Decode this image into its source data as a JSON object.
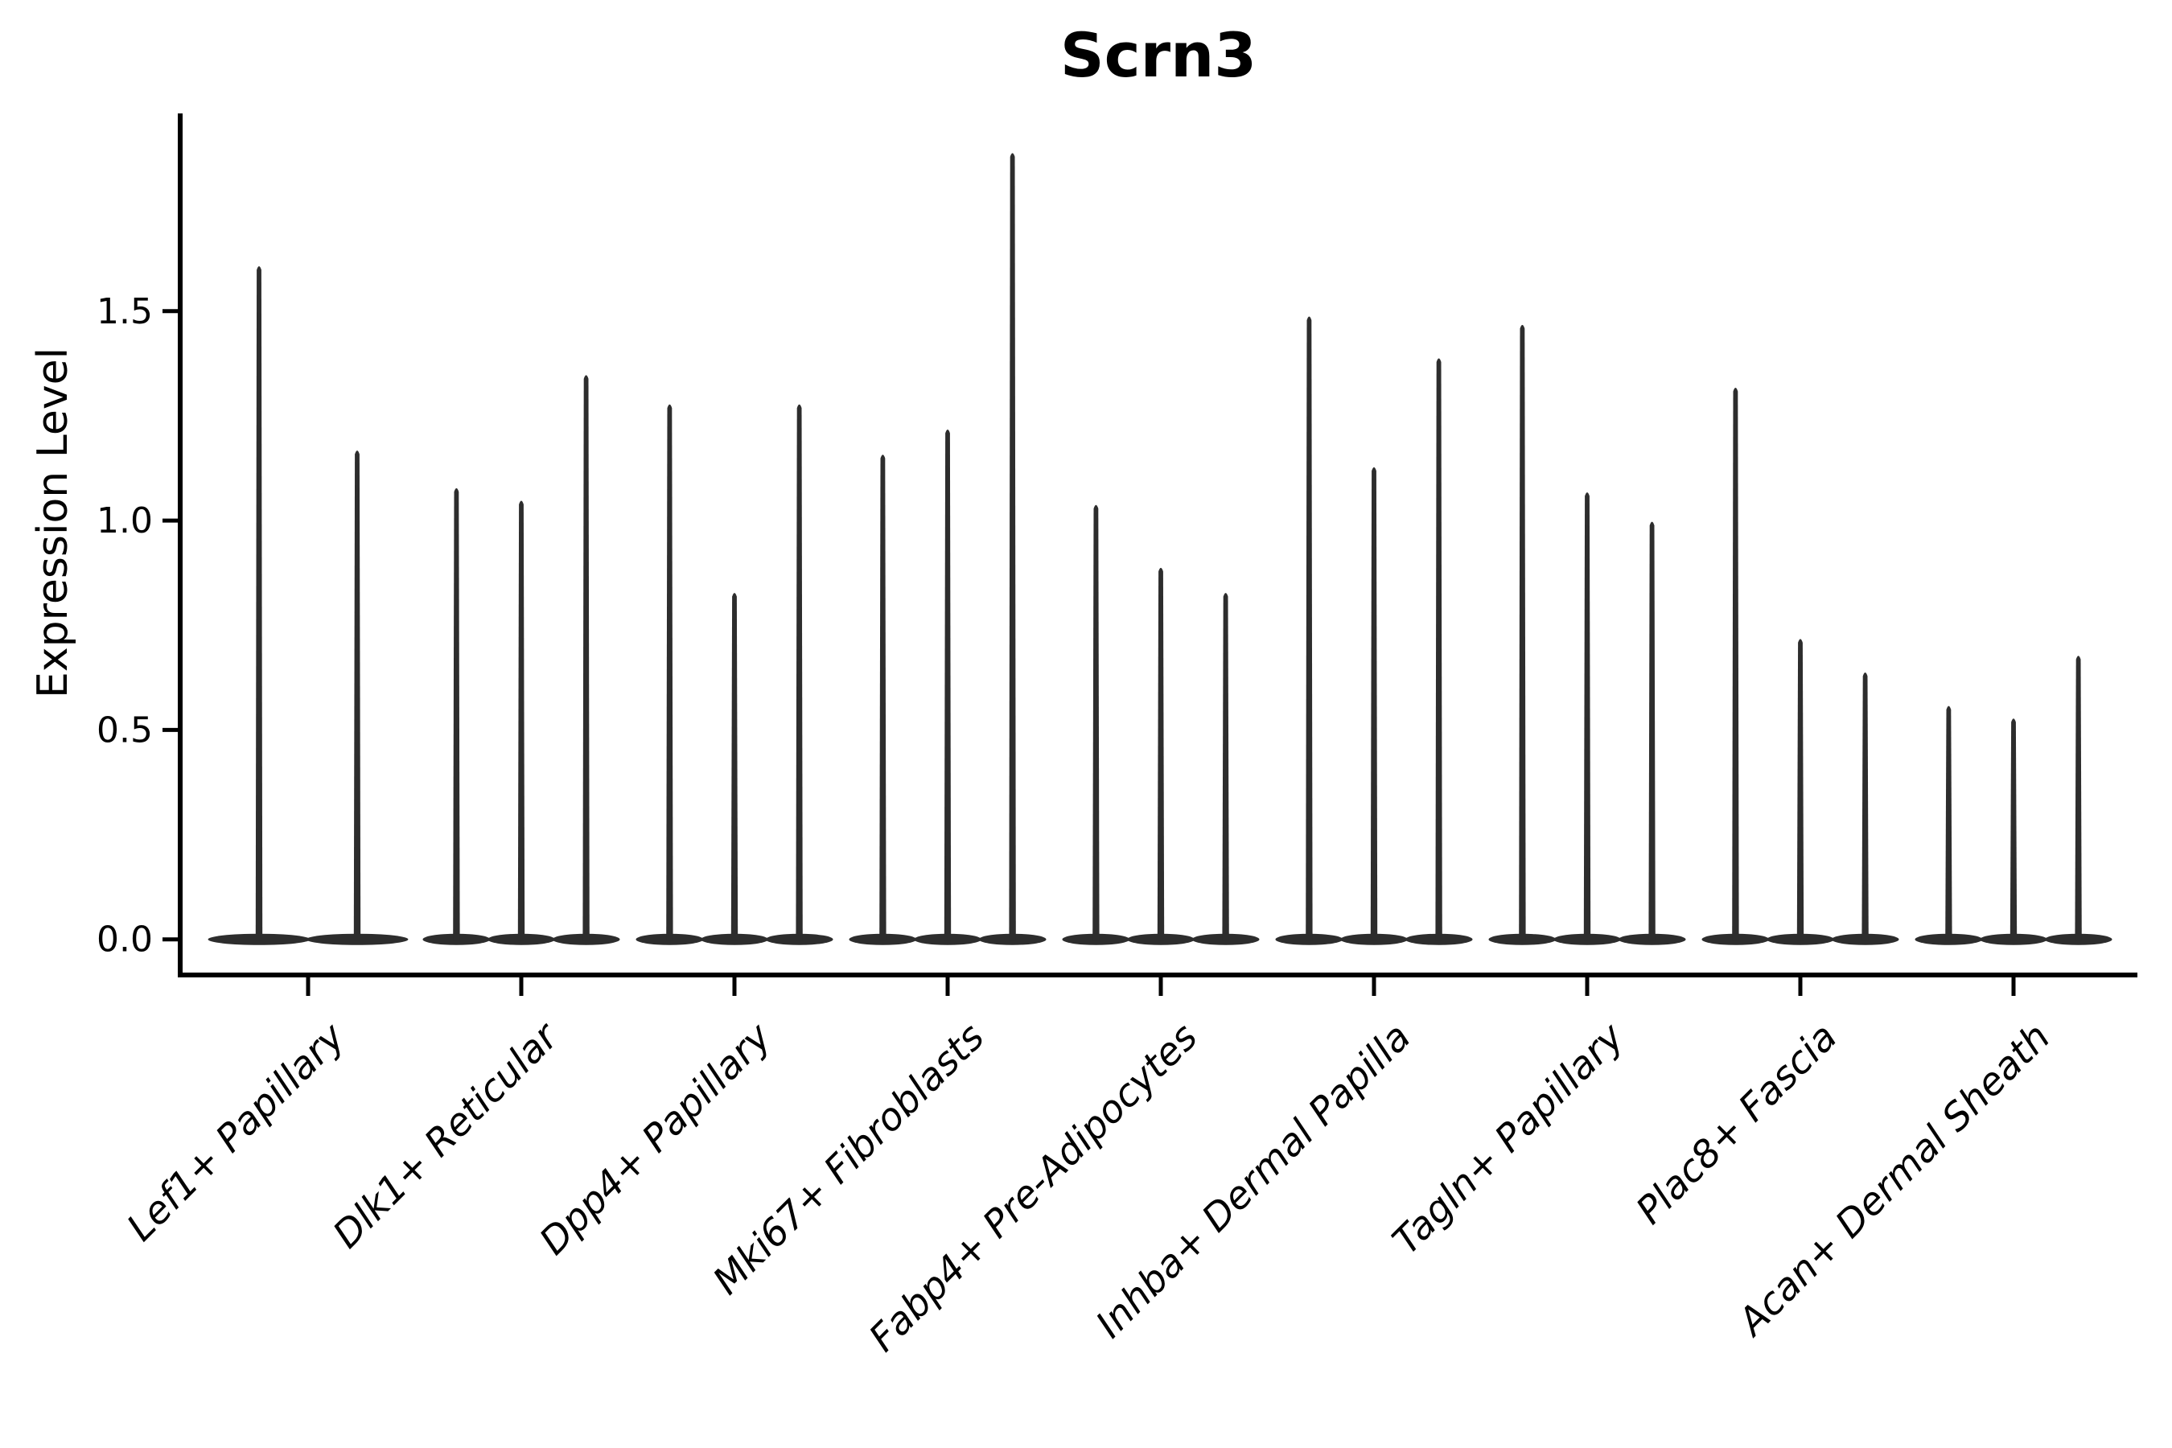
{
  "figure": {
    "title": "Scrn3",
    "ylabel": "Expression Level"
  },
  "chart_data": {
    "type": "violin",
    "title": "Scrn3",
    "xlabel": "",
    "ylabel": "Expression Level",
    "ylim": [
      -0.085,
      1.972
    ],
    "yticks": [
      0.0,
      0.5,
      1.0,
      1.5
    ],
    "ytick_labels": [
      "0.0",
      "0.5",
      "1.0",
      "1.5"
    ],
    "grid": false,
    "legend": null,
    "ink_color": "#2d2d2d",
    "axis_color": "#000000",
    "background_color": "#ffffff",
    "xtick_rotation": 45,
    "description": "Each violin is a thin vertical spike (sparse expression) with a wide flat density bulge at 0; violins per category show the max expression level reached.",
    "categories": [
      "Lef1+ Papillary",
      "Dlk1+ Reticular",
      "Dpp4+ Papillary",
      "Mki67+ Fibroblasts",
      "Fabp4+ Pre-Adipocytes",
      "Inhba+ Dermal Papilla",
      "Tagln+ Papillary",
      "Plac8+ Fascia",
      "Acan+ Dermal Sheath"
    ],
    "series": [
      {
        "category": "Lef1+ Papillary",
        "violin_maxima": [
          1.61,
          1.17
        ]
      },
      {
        "category": "Dlk1+ Reticular",
        "violin_maxima": [
          1.08,
          1.05,
          1.35
        ]
      },
      {
        "category": "Dpp4+ Papillary",
        "violin_maxima": [
          1.28,
          0.83,
          1.28
        ]
      },
      {
        "category": "Mki67+ Fibroblasts",
        "violin_maxima": [
          1.16,
          1.22,
          1.88
        ]
      },
      {
        "category": "Fabp4+ Pre-Adipocytes",
        "violin_maxima": [
          1.04,
          0.89,
          0.83
        ]
      },
      {
        "category": "Inhba+ Dermal Papilla",
        "violin_maxima": [
          1.49,
          1.13,
          1.39
        ]
      },
      {
        "category": "Tagln+ Papillary",
        "violin_maxima": [
          1.47,
          1.07,
          1.0
        ]
      },
      {
        "category": "Plac8+ Fascia",
        "violin_maxima": [
          1.32,
          0.72,
          0.64
        ]
      },
      {
        "category": "Acan+ Dermal Sheath",
        "violin_maxima": [
          0.56,
          0.53,
          0.68
        ]
      }
    ]
  }
}
